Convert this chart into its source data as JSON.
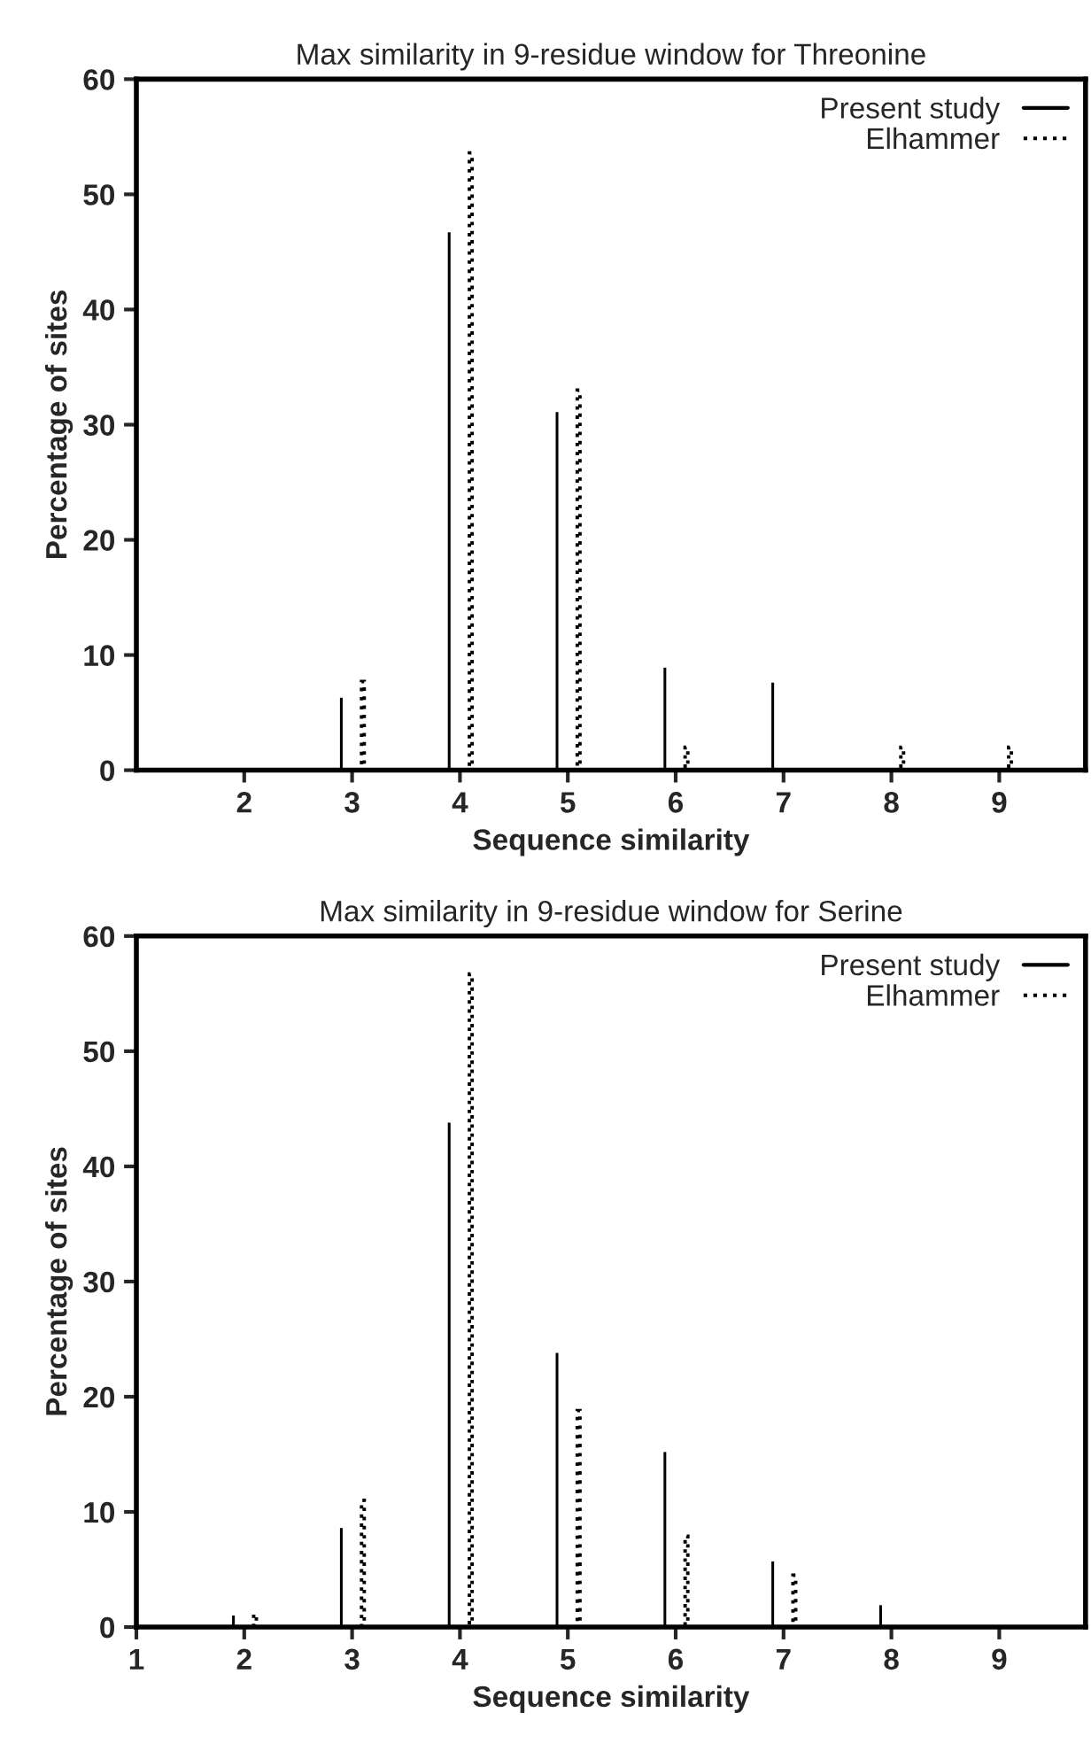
{
  "chart_data": [
    {
      "type": "bar",
      "title": "Max similarity in 9-residue window for Threonine",
      "xlabel": "Sequence similarity",
      "ylabel": "Percentage of sites",
      "xlim": [
        1,
        9.8
      ],
      "xticks": [
        2,
        3,
        4,
        5,
        6,
        7,
        8,
        9
      ],
      "ylim": [
        0,
        60
      ],
      "yticks": [
        0,
        10,
        20,
        30,
        40,
        50,
        60
      ],
      "grid": false,
      "legend": "top right",
      "series": [
        {
          "name": "Present study",
          "color": "#000000",
          "line_style": "solid",
          "x": [
            3,
            4,
            5,
            6,
            7
          ],
          "values": [
            6.3,
            46.7,
            31.1,
            8.9,
            7.6
          ]
        },
        {
          "name": "Elhammer",
          "color": "#000000",
          "line_style": "dotted",
          "x": [
            3,
            4,
            5,
            6,
            8,
            9
          ],
          "values": [
            7.7,
            53.6,
            33.0,
            2.0,
            2.0,
            2.0
          ]
        }
      ]
    },
    {
      "type": "bar",
      "title": "Max similarity in 9-residue window for Serine",
      "xlabel": "Sequence similarity",
      "ylabel": "Percentage of sites",
      "xlim": [
        1,
        9.8
      ],
      "xticks": [
        1,
        2,
        3,
        4,
        5,
        6,
        7,
        8,
        9
      ],
      "ylim": [
        0,
        60
      ],
      "yticks": [
        0,
        10,
        20,
        30,
        40,
        50,
        60
      ],
      "grid": false,
      "legend": "top right",
      "series": [
        {
          "name": "Present study",
          "color": "#000000",
          "line_style": "solid",
          "x": [
            2,
            3,
            4,
            5,
            6,
            7,
            8
          ],
          "values": [
            1.0,
            8.6,
            43.8,
            23.8,
            15.2,
            5.7,
            1.9
          ]
        },
        {
          "name": "Elhammer",
          "color": "#000000",
          "line_style": "dotted",
          "x": [
            2,
            3,
            4,
            5,
            6,
            7
          ],
          "values": [
            1.1,
            11.0,
            56.7,
            18.8,
            7.9,
            4.5
          ]
        }
      ]
    }
  ]
}
